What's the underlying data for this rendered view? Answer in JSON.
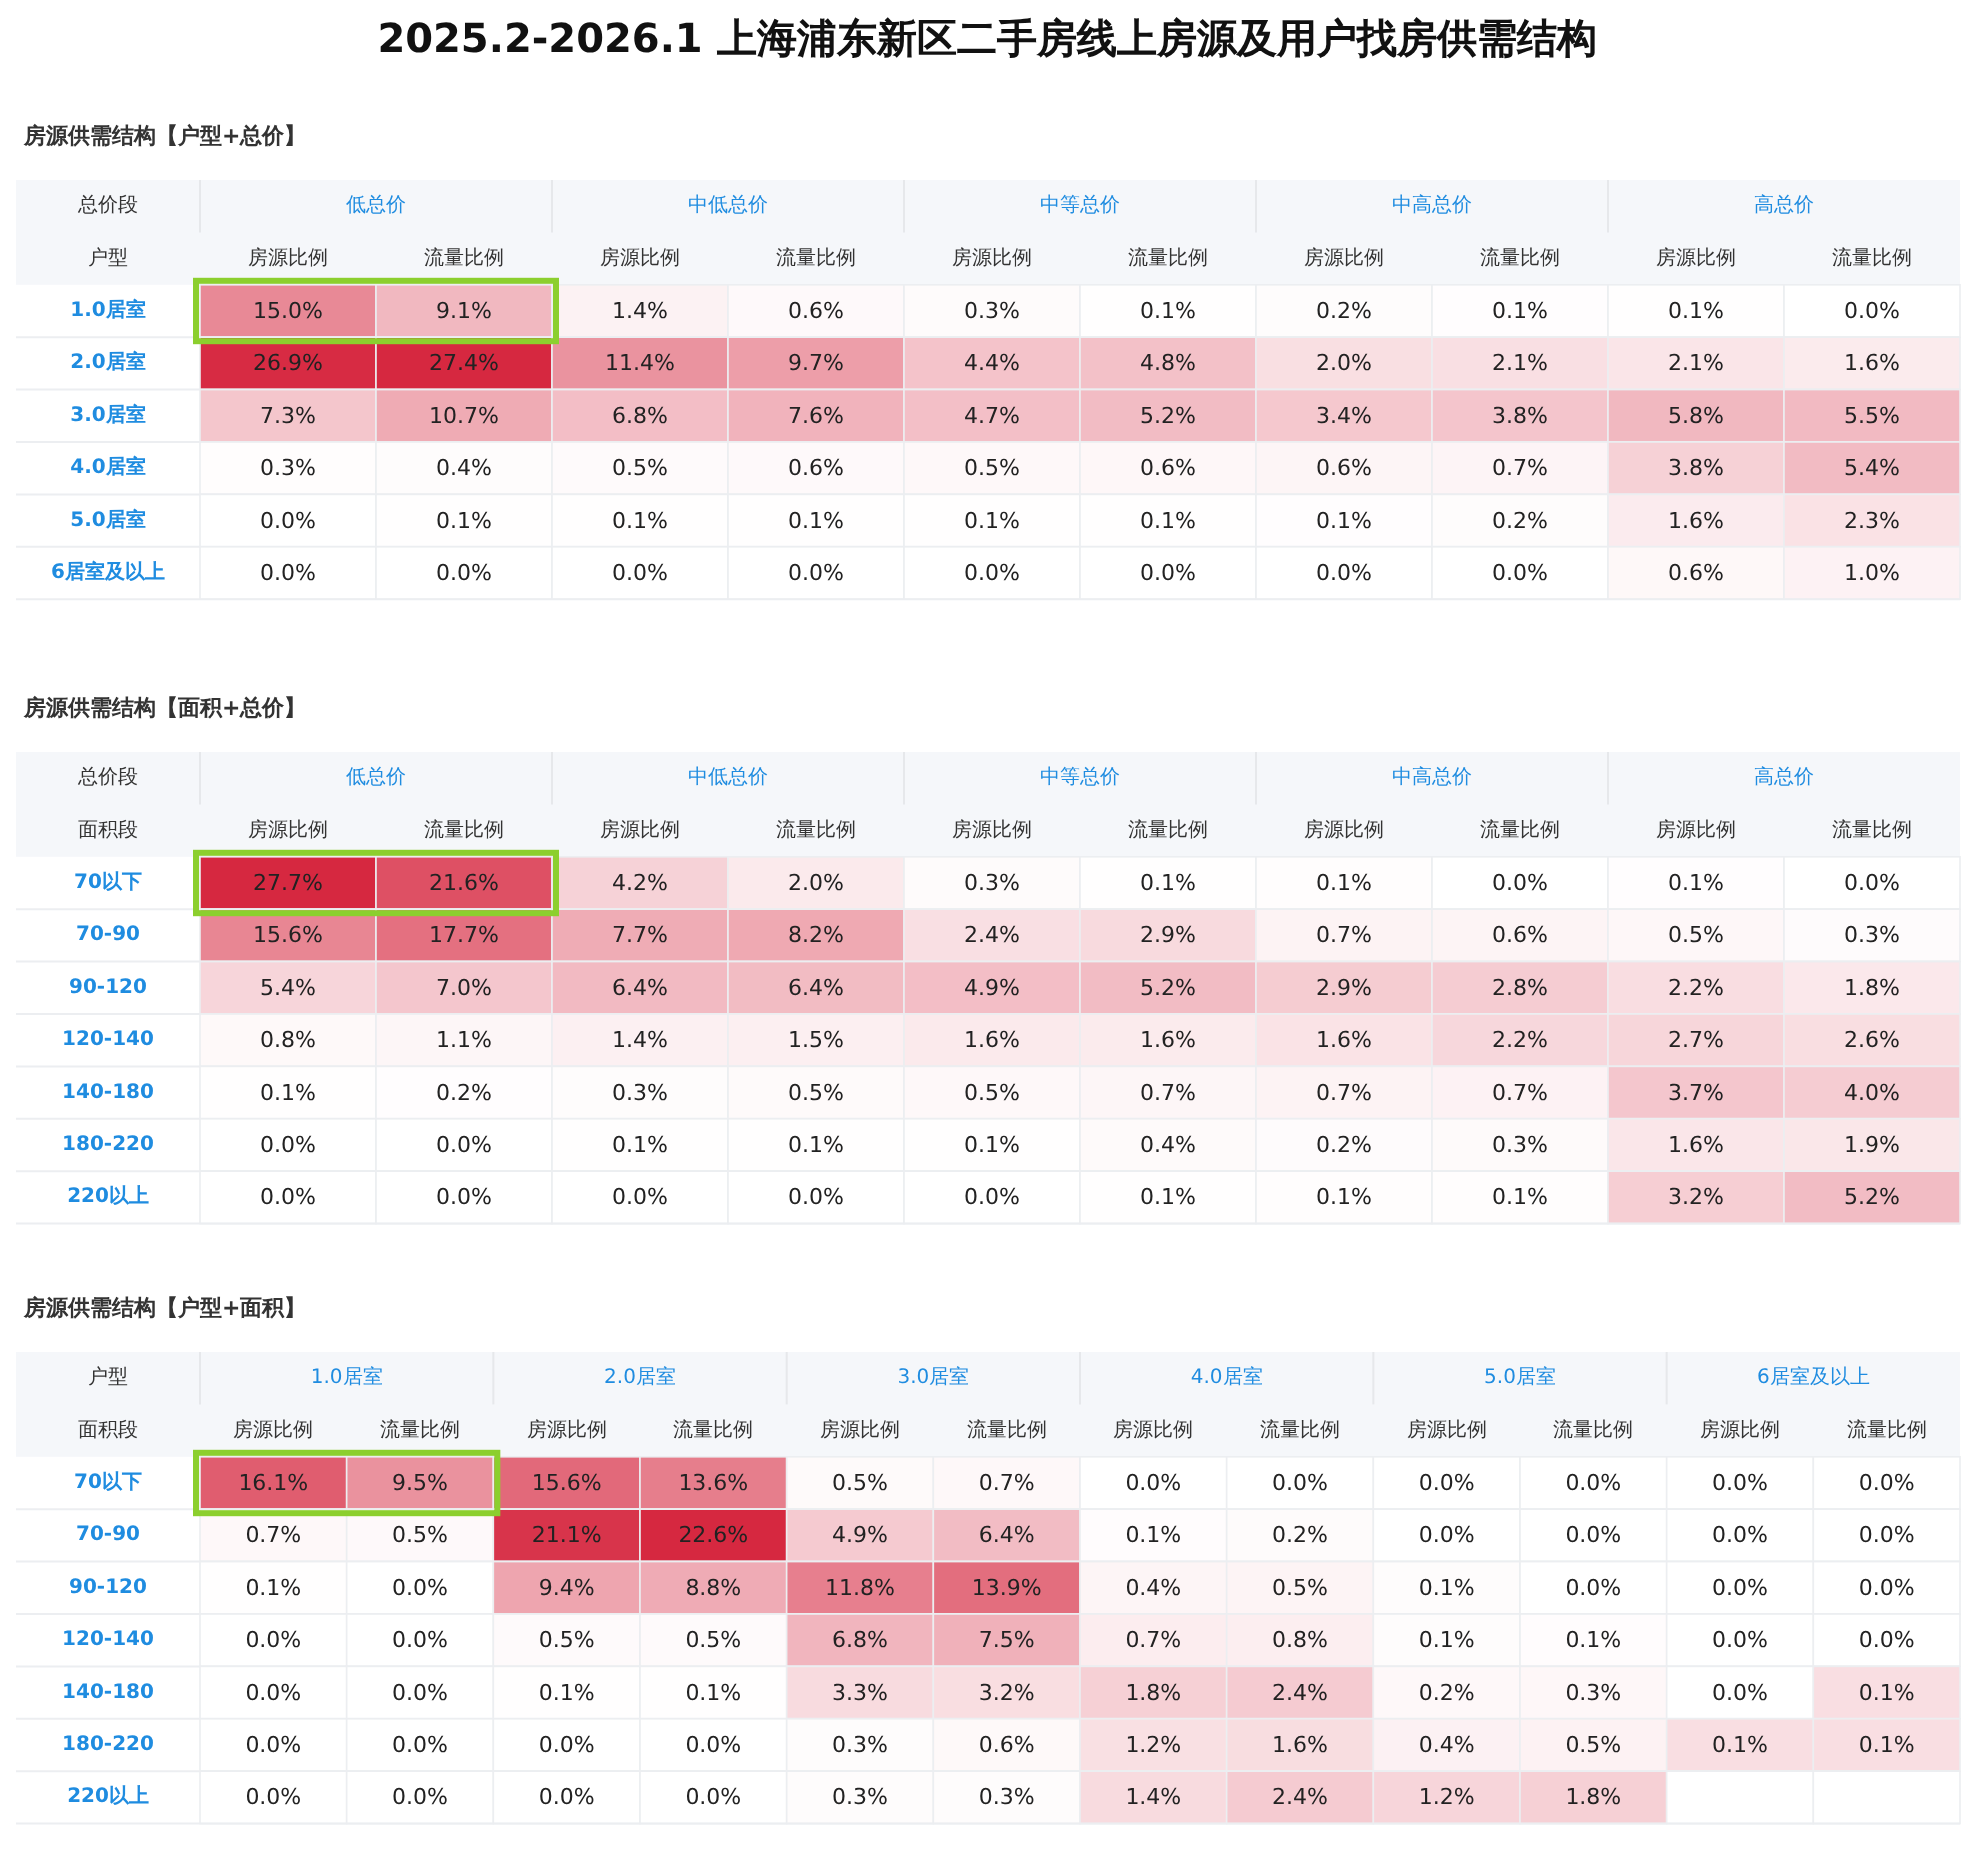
{
  "chart_data": [
    {
      "type": "heatmap",
      "title": "2025.2-2026.1  上海浦东新区二手房线上房源及用户找房供需结构",
      "subtitle": "房源供需结构【户型+总价】",
      "xlabel": "总价段",
      "ylabel": "户型",
      "annotations": [
        "低总价",
        "中低总价",
        "中等总价",
        "中高总价",
        "高总价"
      ],
      "categories": [
        "房源比例",
        "流量比例",
        "房源比例",
        "流量比例",
        "房源比例",
        "流量比例",
        "房源比例",
        "流量比例",
        "房源比例",
        "流量比例"
      ],
      "y_categories": [
        "1.0居室",
        "2.0居室",
        "3.0居室",
        "4.0居室",
        "5.0居室",
        "6居室及以上"
      ],
      "cells": [
        [
          15.0,
          9.1,
          1.4,
          0.6,
          0.3,
          0.1,
          0.2,
          0.1,
          0.1,
          0.0
        ],
        [
          26.9,
          27.4,
          11.4,
          9.7,
          4.4,
          4.8,
          2.0,
          2.1,
          2.1,
          1.6
        ],
        [
          7.3,
          10.7,
          6.8,
          7.6,
          4.7,
          5.2,
          3.4,
          3.8,
          5.8,
          5.5
        ],
        [
          0.3,
          0.4,
          0.5,
          0.6,
          0.5,
          0.6,
          0.6,
          0.7,
          3.8,
          5.4
        ],
        [
          0.0,
          0.1,
          0.1,
          0.1,
          0.1,
          0.1,
          0.1,
          0.2,
          1.6,
          2.3
        ],
        [
          0.0,
          0.0,
          0.0,
          0.0,
          0.0,
          0.0,
          0.0,
          0.0,
          0.6,
          1.0
        ]
      ],
      "cell_labels": [
        [
          "15.0%",
          "9.1%",
          "1.4%",
          "0.6%",
          "0.3%",
          "0.1%",
          "0.2%",
          "0.1%",
          "0.1%",
          "0.0%"
        ],
        [
          "26.9%",
          "27.4%",
          "11.4%",
          "9.7%",
          "4.4%",
          "4.8%",
          "2.0%",
          "2.1%",
          "2.1%",
          "1.6%"
        ],
        [
          "7.3%",
          "10.7%",
          "6.8%",
          "7.6%",
          "4.7%",
          "5.2%",
          "3.4%",
          "3.8%",
          "5.8%",
          "5.5%"
        ],
        [
          "0.3%",
          "0.4%",
          "0.5%",
          "0.6%",
          "0.5%",
          "0.6%",
          "0.6%",
          "0.7%",
          "3.8%",
          "5.4%"
        ],
        [
          "0.0%",
          "0.1%",
          "0.1%",
          "0.1%",
          "0.1%",
          "0.1%",
          "0.1%",
          "0.2%",
          "1.6%",
          "2.3%"
        ],
        [
          "0.0%",
          "0.0%",
          "0.0%",
          "0.0%",
          "0.0%",
          "0.0%",
          "0.0%",
          "0.0%",
          "0.6%",
          "1.0%"
        ]
      ]
    },
    {
      "type": "heatmap",
      "subtitle": "房源供需结构【面积+总价】",
      "xlabel": "总价段",
      "ylabel": "面积段",
      "annotations": [
        "低总价",
        "中低总价",
        "中等总价",
        "中高总价",
        "高总价"
      ],
      "categories": [
        "房源比例",
        "流量比例",
        "房源比例",
        "流量比例",
        "房源比例",
        "流量比例",
        "房源比例",
        "流量比例",
        "房源比例",
        "流量比例"
      ],
      "y_categories": [
        "70以下",
        "70-90",
        "90-120",
        "120-140",
        "140-180",
        "180-220",
        "220以上"
      ],
      "cells": [
        [
          27.7,
          21.6,
          4.2,
          2.0,
          0.3,
          0.1,
          0.1,
          0.0,
          0.1,
          0.0
        ],
        [
          15.6,
          17.7,
          7.7,
          8.2,
          2.4,
          2.9,
          0.7,
          0.6,
          0.5,
          0.3
        ],
        [
          5.4,
          7.0,
          6.4,
          6.4,
          4.9,
          5.2,
          2.9,
          2.8,
          2.2,
          1.8
        ],
        [
          0.8,
          1.1,
          1.4,
          1.5,
          1.6,
          1.6,
          1.6,
          2.2,
          2.7,
          2.6
        ],
        [
          0.1,
          0.2,
          0.3,
          0.5,
          0.5,
          0.7,
          0.7,
          0.7,
          3.7,
          4.0
        ],
        [
          0.0,
          0.0,
          0.1,
          0.1,
          0.1,
          0.4,
          0.2,
          0.3,
          1.6,
          1.9
        ],
        [
          0.0,
          0.0,
          0.0,
          0.0,
          0.0,
          0.1,
          0.1,
          0.1,
          3.2,
          5.2
        ]
      ],
      "cell_labels": [
        [
          "27.7%",
          "21.6%",
          "4.2%",
          "2.0%",
          "0.3%",
          "0.1%",
          "0.1%",
          "0.0%",
          "0.1%",
          "0.0%"
        ],
        [
          "15.6%",
          "17.7%",
          "7.7%",
          "8.2%",
          "2.4%",
          "2.9%",
          "0.7%",
          "0.6%",
          "0.5%",
          "0.3%"
        ],
        [
          "5.4%",
          "7.0%",
          "6.4%",
          "6.4%",
          "4.9%",
          "5.2%",
          "2.9%",
          "2.8%",
          "2.2%",
          "1.8%"
        ],
        [
          "0.8%",
          "1.1%",
          "1.4%",
          "1.5%",
          "1.6%",
          "1.6%",
          "1.6%",
          "2.2%",
          "2.7%",
          "2.6%"
        ],
        [
          "0.1%",
          "0.2%",
          "0.3%",
          "0.5%",
          "0.5%",
          "0.7%",
          "0.7%",
          "0.7%",
          "3.7%",
          "4.0%"
        ],
        [
          "0.0%",
          "0.0%",
          "0.1%",
          "0.1%",
          "0.1%",
          "0.4%",
          "0.2%",
          "0.3%",
          "1.6%",
          "1.9%"
        ],
        [
          "0.0%",
          "0.0%",
          "0.0%",
          "0.0%",
          "0.0%",
          "0.1%",
          "0.1%",
          "0.1%",
          "3.2%",
          "5.2%"
        ]
      ]
    },
    {
      "type": "heatmap",
      "subtitle": "房源供需结构【户型+面积】",
      "xlabel": "户型",
      "ylabel": "面积段",
      "annotations": [
        "1.0居室",
        "2.0居室",
        "3.0居室",
        "4.0居室",
        "5.0居室",
        "6居室及以上"
      ],
      "categories": [
        "房源比例",
        "流量比例",
        "房源比例",
        "流量比例",
        "房源比例",
        "流量比例",
        "房源比例",
        "流量比例",
        "房源比例",
        "流量比例",
        "房源比例",
        "流量比例"
      ],
      "y_categories": [
        "70以下",
        "70-90",
        "90-120",
        "120-140",
        "140-180",
        "180-220",
        "220以上"
      ],
      "cells": [
        [
          16.1,
          9.5,
          15.6,
          13.6,
          0.5,
          0.7,
          0.0,
          0.0,
          0.0,
          0.0,
          0.0,
          0.0
        ],
        [
          0.7,
          0.5,
          21.1,
          22.6,
          4.9,
          6.4,
          0.1,
          0.2,
          0.0,
          0.0,
          0.0,
          0.0
        ],
        [
          0.1,
          0.0,
          9.4,
          8.8,
          11.8,
          13.9,
          0.4,
          0.5,
          0.1,
          0.0,
          0.0,
          0.0
        ],
        [
          0.0,
          0.0,
          0.5,
          0.5,
          6.8,
          7.5,
          0.7,
          0.8,
          0.1,
          0.1,
          0.0,
          0.0
        ],
        [
          0.0,
          0.0,
          0.1,
          0.1,
          3.3,
          3.2,
          1.8,
          2.4,
          0.2,
          0.3,
          0.0,
          0.1
        ],
        [
          0.0,
          0.0,
          0.0,
          0.0,
          0.3,
          0.6,
          1.2,
          1.6,
          0.4,
          0.5,
          0.1,
          0.1
        ],
        [
          0.0,
          0.0,
          0.0,
          0.0,
          0.3,
          0.3,
          1.4,
          2.4,
          1.2,
          1.8,
          null,
          null
        ]
      ],
      "cell_labels": [
        [
          "16.1%",
          "9.5%",
          "15.6%",
          "13.6%",
          "0.5%",
          "0.7%",
          "0.0%",
          "0.0%",
          "0.0%",
          "0.0%",
          "0.0%",
          "0.0%"
        ],
        [
          "0.7%",
          "0.5%",
          "21.1%",
          "22.6%",
          "4.9%",
          "6.4%",
          "0.1%",
          "0.2%",
          "0.0%",
          "0.0%",
          "0.0%",
          "0.0%"
        ],
        [
          "0.1%",
          "0.0%",
          "9.4%",
          "8.8%",
          "11.8%",
          "13.9%",
          "0.4%",
          "0.5%",
          "0.1%",
          "0.0%",
          "0.0%",
          "0.0%"
        ],
        [
          "0.0%",
          "0.0%",
          "0.5%",
          "0.5%",
          "6.8%",
          "7.5%",
          "0.7%",
          "0.8%",
          "0.1%",
          "0.1%",
          "0.0%",
          "0.0%"
        ],
        [
          "0.0%",
          "0.0%",
          "0.1%",
          "0.1%",
          "3.3%",
          "3.2%",
          "1.8%",
          "2.4%",
          "0.2%",
          "0.3%",
          "0.0%",
          "0.1%"
        ],
        [
          "0.0%",
          "0.0%",
          "0.0%",
          "0.0%",
          "0.3%",
          "0.6%",
          "1.2%",
          "1.6%",
          "0.4%",
          "0.5%",
          "0.1%",
          "0.1%"
        ],
        [
          "0.0%",
          "0.0%",
          "0.0%",
          "0.0%",
          "0.3%",
          "0.3%",
          "1.4%",
          "2.4%",
          "1.2%",
          "1.8%",
          null,
          null
        ]
      ]
    }
  ]
}
